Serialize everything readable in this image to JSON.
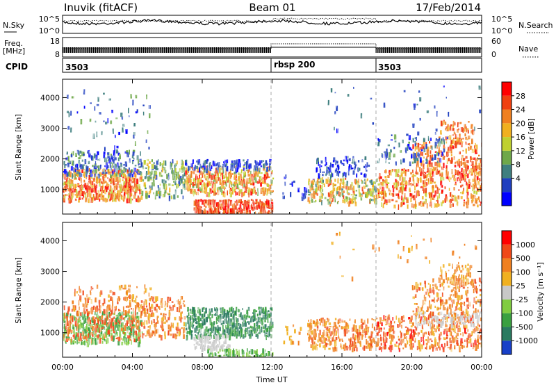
{
  "header": {
    "station": "Inuvik (fitACF)",
    "beam": "Beam 01",
    "date": "17/Feb/2014"
  },
  "panels": {
    "nsky": {
      "left_label": "N.Sky",
      "right_label": "N.Search",
      "left_ticks": [
        "10^5",
        "10^0"
      ],
      "right_ticks": [
        "10^5",
        "10^0"
      ]
    },
    "freq": {
      "left_label_1": "Freq.",
      "left_label_2": "[MHz]",
      "right_label": "Nave",
      "left_ticks": [
        "18",
        "8"
      ],
      "right_ticks": [
        "60",
        "0"
      ]
    },
    "cpid": {
      "label": "CPID",
      "segments": [
        {
          "label": "3503",
          "start_hour": 0
        },
        {
          "label": "rbsp 200",
          "start_hour": 12
        },
        {
          "label": "3503",
          "start_hour": 18
        }
      ]
    }
  },
  "chart_data": [
    {
      "type": "heatmap",
      "name": "power",
      "ylabel": "Slant Range [km]",
      "yticks": [
        1000,
        2000,
        3000,
        4000
      ],
      "ylim": [
        200,
        4600
      ],
      "colorbar": {
        "label": "Power [dB]",
        "ticks": [
          "28",
          "24",
          "20",
          "16",
          "12",
          "8",
          "4"
        ],
        "colors": [
          "#0000ff",
          "#1f3fbf",
          "#3f7f7f",
          "#6fa84a",
          "#bfd030",
          "#f0b020",
          "#f08020",
          "#f04010",
          "#ff0000"
        ]
      }
    },
    {
      "type": "heatmap",
      "name": "velocity",
      "ylabel": "Slant Range [km]",
      "yticks": [
        1000,
        2000,
        3000,
        4000
      ],
      "ylim": [
        200,
        4600
      ],
      "colorbar": {
        "label": "Velocity [m s⁻¹]",
        "ticks": [
          "1000",
          "500",
          "100",
          "25",
          "-25",
          "-100",
          "-500",
          "-1000"
        ],
        "colors": [
          "#1840c8",
          "#2a7a60",
          "#3aa040",
          "#80cc40",
          "#c8c8c8",
          "#f0b020",
          "#f08020",
          "#f04818",
          "#ff0000"
        ]
      }
    }
  ],
  "xaxis": {
    "ticks": [
      "00:00",
      "04:00",
      "08:00",
      "12:00",
      "16:00",
      "20:00",
      "00:00"
    ],
    "label": "Time UT",
    "range_hours": [
      0,
      24
    ]
  }
}
